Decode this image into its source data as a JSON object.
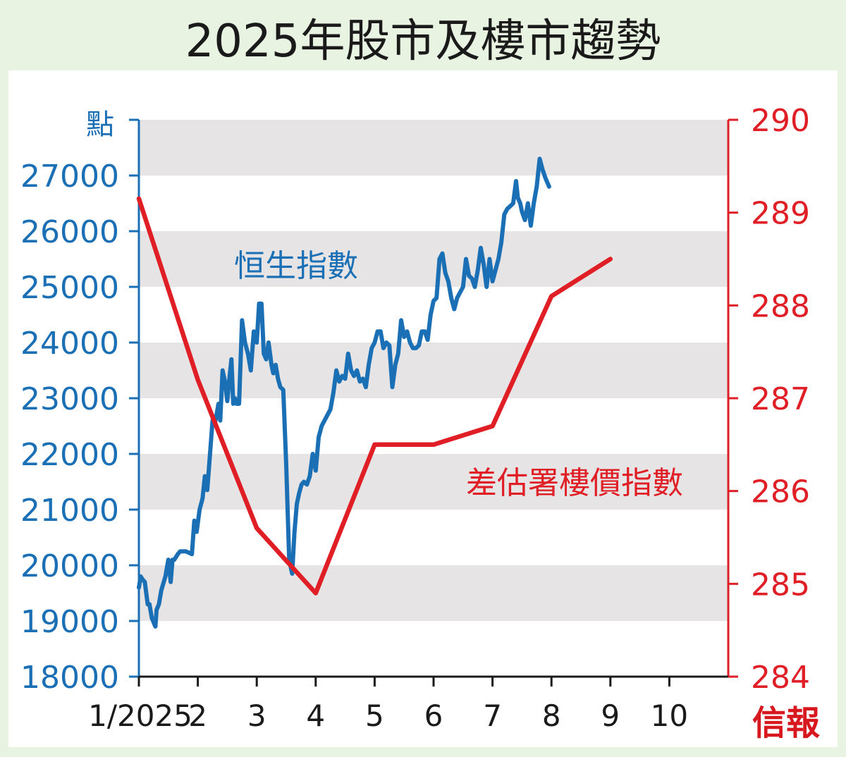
{
  "chart_data": {
    "type": "line",
    "title": "2025年股市及樓市趨勢",
    "left_axis": {
      "unit": "點",
      "ticks": [
        18000,
        19000,
        20000,
        21000,
        22000,
        23000,
        24000,
        25000,
        26000,
        27000
      ],
      "range": [
        18000,
        28000
      ],
      "color": "#1a6fb5"
    },
    "right_axis": {
      "ticks": [
        284,
        285,
        286,
        287,
        288,
        289,
        290
      ],
      "range": [
        284,
        290
      ],
      "color": "#e01e25"
    },
    "x_axis": {
      "range": [
        1,
        11
      ],
      "ticks": [
        {
          "v": 1,
          "label": "1/2025"
        },
        {
          "v": 2,
          "label": "2"
        },
        {
          "v": 3,
          "label": "3"
        },
        {
          "v": 4,
          "label": "4"
        },
        {
          "v": 5,
          "label": "5"
        },
        {
          "v": 6,
          "label": "6"
        },
        {
          "v": 7,
          "label": "7"
        },
        {
          "v": 8,
          "label": "8"
        },
        {
          "v": 9,
          "label": "9"
        },
        {
          "v": 10,
          "label": "10"
        }
      ]
    },
    "series": [
      {
        "name": "恒生指數",
        "axis": "left",
        "color": "#1a6fb5",
        "points": [
          [
            1.0,
            19600
          ],
          [
            1.03,
            19800
          ],
          [
            1.06,
            19750
          ],
          [
            1.1,
            19700
          ],
          [
            1.15,
            19300
          ],
          [
            1.18,
            19300
          ],
          [
            1.22,
            19050
          ],
          [
            1.28,
            18900
          ],
          [
            1.3,
            19200
          ],
          [
            1.34,
            19300
          ],
          [
            1.38,
            19550
          ],
          [
            1.45,
            19800
          ],
          [
            1.5,
            20100
          ],
          [
            1.54,
            19700
          ],
          [
            1.57,
            20100
          ],
          [
            1.6,
            20100
          ],
          [
            1.66,
            20200
          ],
          [
            1.7,
            20250
          ],
          [
            1.8,
            20250
          ],
          [
            1.9,
            20200
          ],
          [
            1.94,
            20800
          ],
          [
            1.98,
            20600
          ],
          [
            2.03,
            21000
          ],
          [
            2.08,
            21200
          ],
          [
            2.12,
            21600
          ],
          [
            2.16,
            21350
          ],
          [
            2.2,
            21900
          ],
          [
            2.25,
            22600
          ],
          [
            2.3,
            22600
          ],
          [
            2.35,
            22900
          ],
          [
            2.38,
            22600
          ],
          [
            2.42,
            23500
          ],
          [
            2.46,
            23300
          ],
          [
            2.5,
            22950
          ],
          [
            2.54,
            23400
          ],
          [
            2.57,
            23700
          ],
          [
            2.6,
            22900
          ],
          [
            2.63,
            23000
          ],
          [
            2.66,
            22900
          ],
          [
            2.7,
            22900
          ],
          [
            2.75,
            24400
          ],
          [
            2.8,
            24000
          ],
          [
            2.85,
            23800
          ],
          [
            2.9,
            23500
          ],
          [
            2.95,
            24200
          ],
          [
            3.0,
            24000
          ],
          [
            3.04,
            24700
          ],
          [
            3.08,
            24700
          ],
          [
            3.12,
            23800
          ],
          [
            3.16,
            23700
          ],
          [
            3.2,
            24000
          ],
          [
            3.25,
            23600
          ],
          [
            3.28,
            23450
          ],
          [
            3.32,
            23600
          ],
          [
            3.36,
            23350
          ],
          [
            3.4,
            23200
          ],
          [
            3.45,
            23150
          ],
          [
            3.5,
            21800
          ],
          [
            3.55,
            20100
          ],
          [
            3.6,
            19850
          ],
          [
            3.64,
            20600
          ],
          [
            3.68,
            21100
          ],
          [
            3.72,
            21300
          ],
          [
            3.76,
            21450
          ],
          [
            3.8,
            21500
          ],
          [
            3.85,
            21450
          ],
          [
            3.9,
            21600
          ],
          [
            3.95,
            22000
          ],
          [
            4.0,
            21700
          ],
          [
            4.05,
            22300
          ],
          [
            4.1,
            22500
          ],
          [
            4.15,
            22600
          ],
          [
            4.2,
            22700
          ],
          [
            4.25,
            22800
          ],
          [
            4.3,
            23100
          ],
          [
            4.35,
            23500
          ],
          [
            4.4,
            23300
          ],
          [
            4.45,
            23400
          ],
          [
            4.5,
            23350
          ],
          [
            4.55,
            23800
          ],
          [
            4.6,
            23500
          ],
          [
            4.65,
            23400
          ],
          [
            4.7,
            23500
          ],
          [
            4.75,
            23300
          ],
          [
            4.8,
            23350
          ],
          [
            4.85,
            23200
          ],
          [
            4.9,
            23600
          ],
          [
            4.95,
            23900
          ],
          [
            5.0,
            24000
          ],
          [
            5.05,
            24200
          ],
          [
            5.1,
            24200
          ],
          [
            5.15,
            23900
          ],
          [
            5.2,
            24000
          ],
          [
            5.25,
            23950
          ],
          [
            5.3,
            23200
          ],
          [
            5.35,
            23600
          ],
          [
            5.4,
            23800
          ],
          [
            5.45,
            24400
          ],
          [
            5.5,
            24100
          ],
          [
            5.55,
            24200
          ],
          [
            5.6,
            24000
          ],
          [
            5.65,
            23900
          ],
          [
            5.7,
            23900
          ],
          [
            5.75,
            23950
          ],
          [
            5.8,
            24200
          ],
          [
            5.85,
            24200
          ],
          [
            5.9,
            24050
          ],
          [
            5.95,
            24500
          ],
          [
            6.0,
            24750
          ],
          [
            6.05,
            24800
          ],
          [
            6.1,
            25500
          ],
          [
            6.15,
            25600
          ],
          [
            6.2,
            25250
          ],
          [
            6.25,
            25100
          ],
          [
            6.3,
            24800
          ],
          [
            6.35,
            24600
          ],
          [
            6.4,
            24800
          ],
          [
            6.45,
            24900
          ],
          [
            6.5,
            25000
          ],
          [
            6.55,
            25500
          ],
          [
            6.6,
            25200
          ],
          [
            6.65,
            25150
          ],
          [
            6.7,
            25000
          ],
          [
            6.75,
            25300
          ],
          [
            6.8,
            25700
          ],
          [
            6.85,
            25400
          ],
          [
            6.9,
            25000
          ],
          [
            6.95,
            25500
          ],
          [
            7.0,
            25100
          ],
          [
            7.05,
            25300
          ],
          [
            7.1,
            25500
          ],
          [
            7.15,
            25800
          ],
          [
            7.2,
            26300
          ],
          [
            7.25,
            26400
          ],
          [
            7.3,
            26450
          ],
          [
            7.35,
            26500
          ],
          [
            7.4,
            26900
          ],
          [
            7.43,
            26600
          ],
          [
            7.47,
            26500
          ],
          [
            7.5,
            26350
          ],
          [
            7.55,
            26200
          ],
          [
            7.6,
            26500
          ],
          [
            7.65,
            26100
          ],
          [
            7.7,
            26500
          ],
          [
            7.75,
            26800
          ],
          [
            7.8,
            27300
          ],
          [
            7.85,
            27100
          ],
          [
            7.9,
            26950
          ],
          [
            7.96,
            26800
          ]
        ]
      },
      {
        "name": "差估署樓價指數",
        "axis": "right",
        "color": "#e01e25",
        "points": [
          [
            1.0,
            289.15
          ],
          [
            2.0,
            287.2
          ],
          [
            3.0,
            285.6
          ],
          [
            4.0,
            284.9
          ],
          [
            5.0,
            286.5
          ],
          [
            6.0,
            286.5
          ],
          [
            7.0,
            286.7
          ],
          [
            8.0,
            288.1
          ],
          [
            9.0,
            288.5
          ]
        ]
      }
    ],
    "watermark": "信報"
  }
}
